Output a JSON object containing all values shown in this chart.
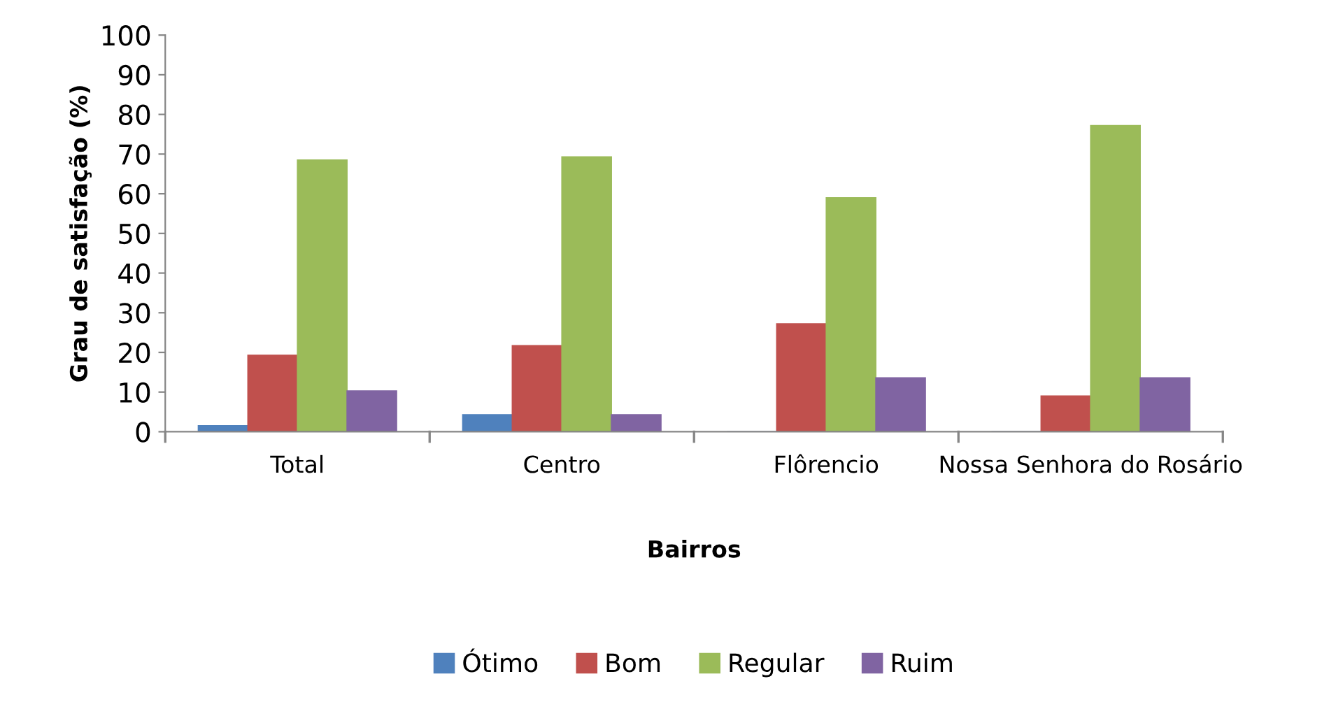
{
  "chart_data": {
    "type": "bar",
    "xlabel": "Bairros",
    "ylabel": "Grau de satisfação (%)",
    "categories": [
      "Total",
      "Centro",
      "Flôrencio",
      "Nossa Senhora do Rosário"
    ],
    "series": [
      {
        "name": "Ótimo",
        "color": "#4f81bd",
        "values": [
          1.5,
          4.3,
          0,
          0
        ]
      },
      {
        "name": "Bom",
        "color": "#c0504d",
        "values": [
          19.3,
          21.7,
          27.2,
          9.0
        ]
      },
      {
        "name": "Regular",
        "color": "#9bbb59",
        "values": [
          68.5,
          69.3,
          59.0,
          77.2
        ]
      },
      {
        "name": "Ruim",
        "color": "#8064a2",
        "values": [
          10.3,
          4.3,
          13.6,
          13.6
        ]
      }
    ],
    "ylim": [
      0,
      100
    ],
    "yticks": [
      0,
      10,
      20,
      30,
      40,
      50,
      60,
      70,
      80,
      90,
      100
    ],
    "grid": false,
    "legend": "bottom"
  }
}
